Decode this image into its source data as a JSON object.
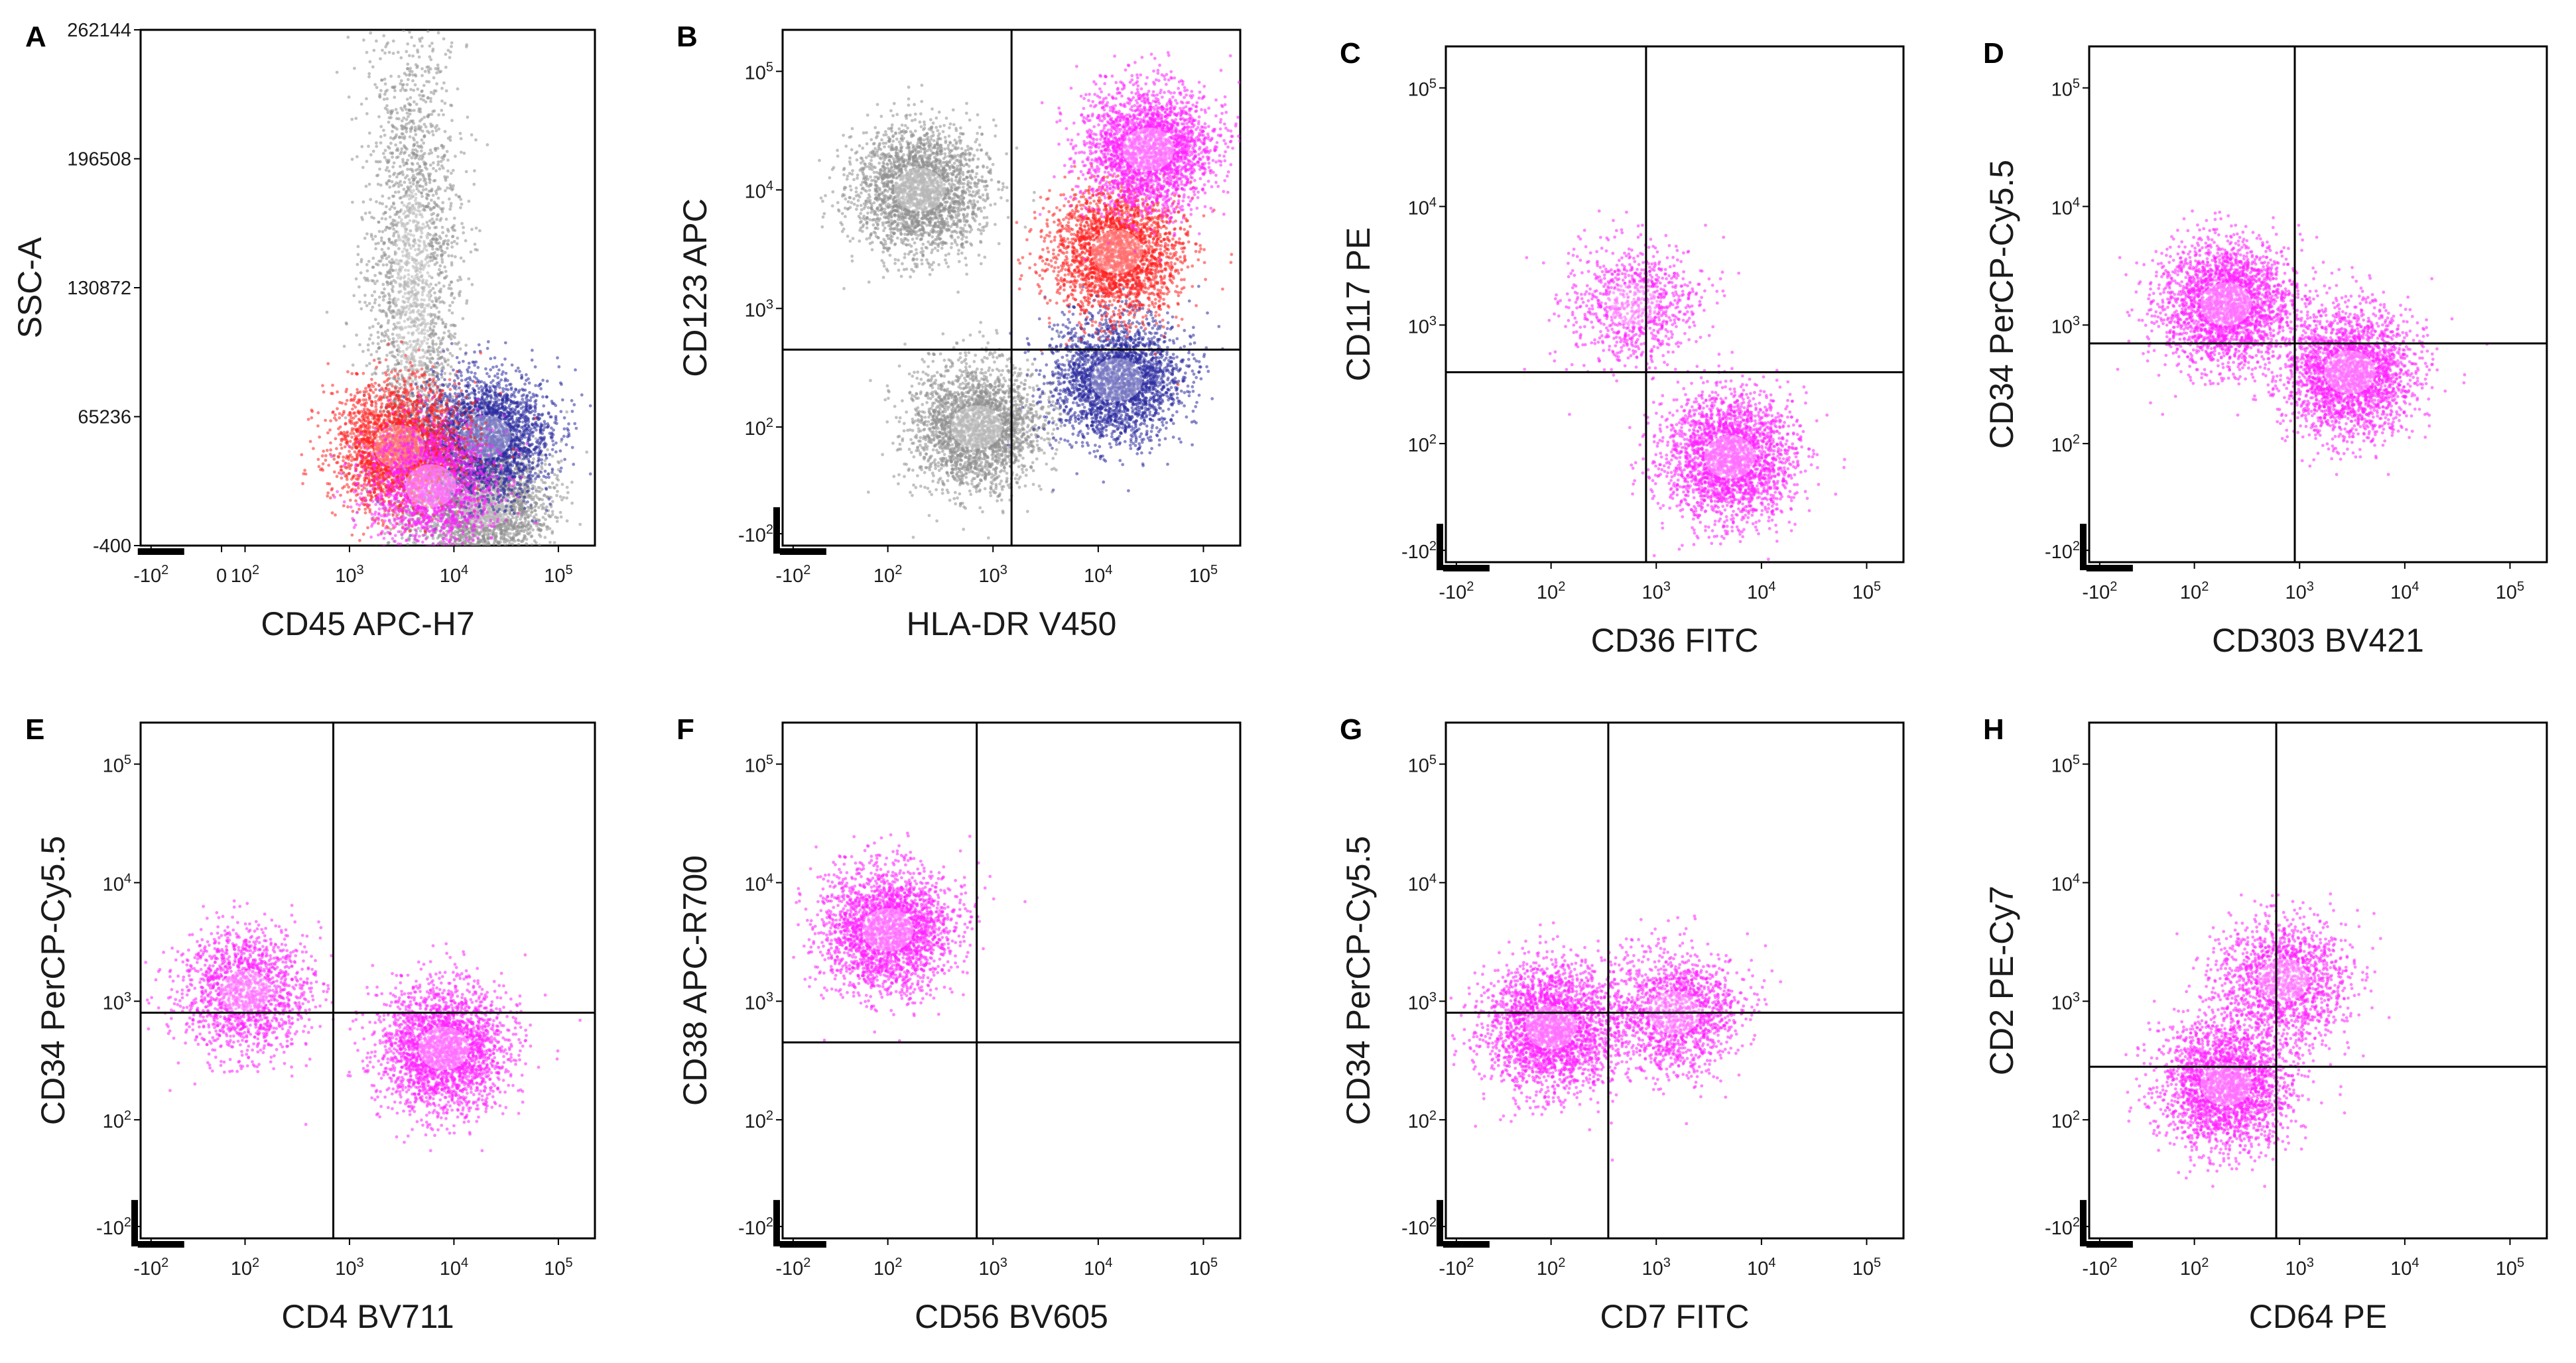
{
  "chart_data": [
    {
      "panel": "A",
      "type": "scatter",
      "xlabel": "CD45 APC-H7",
      "ylabel": "SSC-A",
      "x_scale": "biexponential",
      "y_scale": "linear",
      "x_ticks": [
        "-10^2",
        "0",
        "10^2",
        "10^3",
        "10^4",
        "10^5"
      ],
      "y_ticks": [
        "262144",
        "196508",
        "130872",
        "65236",
        "-400"
      ],
      "ylim": [
        -400,
        262144
      ],
      "populations": [
        {
          "color": "#909090",
          "x_center": 4000,
          "y_center": 130000,
          "note": "vertical smear",
          "density": "high"
        },
        {
          "color": "#909090",
          "x_center": 20000,
          "y_center": 20000,
          "density": "high"
        },
        {
          "color": "#2b2ba0",
          "x_center": 20000,
          "y_center": 55000,
          "density": "high"
        },
        {
          "color": "#ff2020",
          "x_center": 3000,
          "y_center": 50000,
          "density": "high"
        },
        {
          "color": "#ff20ff",
          "x_center": 6000,
          "y_center": 30000,
          "density": "medium"
        }
      ]
    },
    {
      "panel": "B",
      "type": "scatter",
      "xlabel": "HLA-DR V450",
      "ylabel": "CD123 APC",
      "x_scale": "biexponential",
      "y_scale": "biexponential",
      "x_ticks": [
        "-10^2",
        "10^2",
        "10^3",
        "10^4",
        "10^5"
      ],
      "y_ticks": [
        "-10^2",
        "10^2",
        "10^3",
        "10^4",
        "10^5"
      ],
      "quadrant": {
        "x": 1500,
        "y": 450
      },
      "populations": [
        {
          "color": "#909090",
          "x_center": 700,
          "y_center": 100
        },
        {
          "color": "#909090",
          "x_center": 200,
          "y_center": 10000
        },
        {
          "color": "#2b2ba0",
          "x_center": 15000,
          "y_center": 250
        },
        {
          "color": "#ff2020",
          "x_center": 15000,
          "y_center": 3000
        },
        {
          "color": "#ff20ff",
          "x_center": 30000,
          "y_center": 22000
        }
      ]
    },
    {
      "panel": "C",
      "type": "scatter",
      "xlabel": "CD36 FITC",
      "ylabel": "CD117 PE",
      "x_scale": "biexponential",
      "y_scale": "biexponential",
      "x_ticks": [
        "-10^2",
        "10^2",
        "10^3",
        "10^4",
        "10^5"
      ],
      "y_ticks": [
        "-10^2",
        "10^2",
        "10^3",
        "10^4",
        "10^5"
      ],
      "quadrant": {
        "x": 800,
        "y": 400
      },
      "populations": [
        {
          "color": "#ff20ff",
          "x_center": 5000,
          "y_center": 50,
          "density": "high"
        },
        {
          "color": "#ff20ff",
          "x_center": 600,
          "y_center": 1500,
          "density": "low"
        }
      ]
    },
    {
      "panel": "D",
      "type": "scatter",
      "xlabel": "CD303 BV421",
      "ylabel": "CD34 PerCP-Cy5.5",
      "x_scale": "biexponential",
      "y_scale": "biexponential",
      "x_ticks": [
        "-10^2",
        "10^2",
        "10^3",
        "10^4",
        "10^5"
      ],
      "y_ticks": [
        "-10^2",
        "10^2",
        "10^3",
        "10^4",
        "10^5"
      ],
      "quadrant": {
        "x": 900,
        "y": 700
      },
      "populations": [
        {
          "color": "#ff20ff",
          "x_center": 3000,
          "y_center": 400,
          "density": "high"
        },
        {
          "color": "#ff20ff",
          "x_center": 200,
          "y_center": 1500,
          "density": "high"
        }
      ]
    },
    {
      "panel": "E",
      "type": "scatter",
      "xlabel": "CD4 BV711",
      "ylabel": "CD34 PerCP-Cy5.5",
      "x_scale": "biexponential",
      "y_scale": "biexponential",
      "x_ticks": [
        "-10^2",
        "10^2",
        "10^3",
        "10^4",
        "10^5"
      ],
      "y_ticks": [
        "-10^2",
        "10^2",
        "10^3",
        "10^4",
        "10^5"
      ],
      "quadrant": {
        "x": 700,
        "y": 800
      },
      "populations": [
        {
          "color": "#ff20ff",
          "x_center": 8000,
          "y_center": 400,
          "density": "high"
        },
        {
          "color": "#ff20ff",
          "x_center": 100,
          "y_center": 1200,
          "density": "medium"
        }
      ]
    },
    {
      "panel": "F",
      "type": "scatter",
      "xlabel": "CD56 BV605",
      "ylabel": "CD38 APC-R700",
      "x_scale": "biexponential",
      "y_scale": "biexponential",
      "x_ticks": [
        "-10^2",
        "10^2",
        "10^3",
        "10^4",
        "10^5"
      ],
      "y_ticks": [
        "-10^2",
        "10^2",
        "10^3",
        "10^4",
        "10^5"
      ],
      "quadrant": {
        "x": 700,
        "y": 450
      },
      "populations": [
        {
          "color": "#ff20ff",
          "x_center": 100,
          "y_center": 4000,
          "density": "high"
        }
      ]
    },
    {
      "panel": "G",
      "type": "scatter",
      "xlabel": "CD7 FITC",
      "ylabel": "CD34 PerCP-Cy5.5",
      "x_scale": "biexponential",
      "y_scale": "biexponential",
      "x_ticks": [
        "-10^2",
        "10^2",
        "10^3",
        "10^4",
        "10^5"
      ],
      "y_ticks": [
        "-10^2",
        "10^2",
        "10^3",
        "10^4",
        "10^5"
      ],
      "quadrant": {
        "x": 350,
        "y": 800
      },
      "populations": [
        {
          "color": "#ff20ff",
          "x_center": 100,
          "y_center": 600,
          "density": "high"
        },
        {
          "color": "#ff20ff",
          "x_center": 1500,
          "y_center": 800,
          "density": "medium"
        }
      ]
    },
    {
      "panel": "H",
      "type": "scatter",
      "xlabel": "CD64 PE",
      "ylabel": "CD2 PE-Cy7",
      "x_scale": "biexponential",
      "y_scale": "biexponential",
      "x_ticks": [
        "-10^2",
        "10^2",
        "10^3",
        "10^4",
        "10^5"
      ],
      "y_ticks": [
        "-10^2",
        "10^2",
        "10^3",
        "10^4",
        "10^5"
      ],
      "quadrant": {
        "x": 600,
        "y": 280
      },
      "populations": [
        {
          "color": "#ff20ff",
          "x_center": 200,
          "y_center": 200,
          "density": "high"
        },
        {
          "color": "#ff20ff",
          "x_center": 700,
          "y_center": 1500,
          "density": "medium"
        }
      ]
    }
  ]
}
